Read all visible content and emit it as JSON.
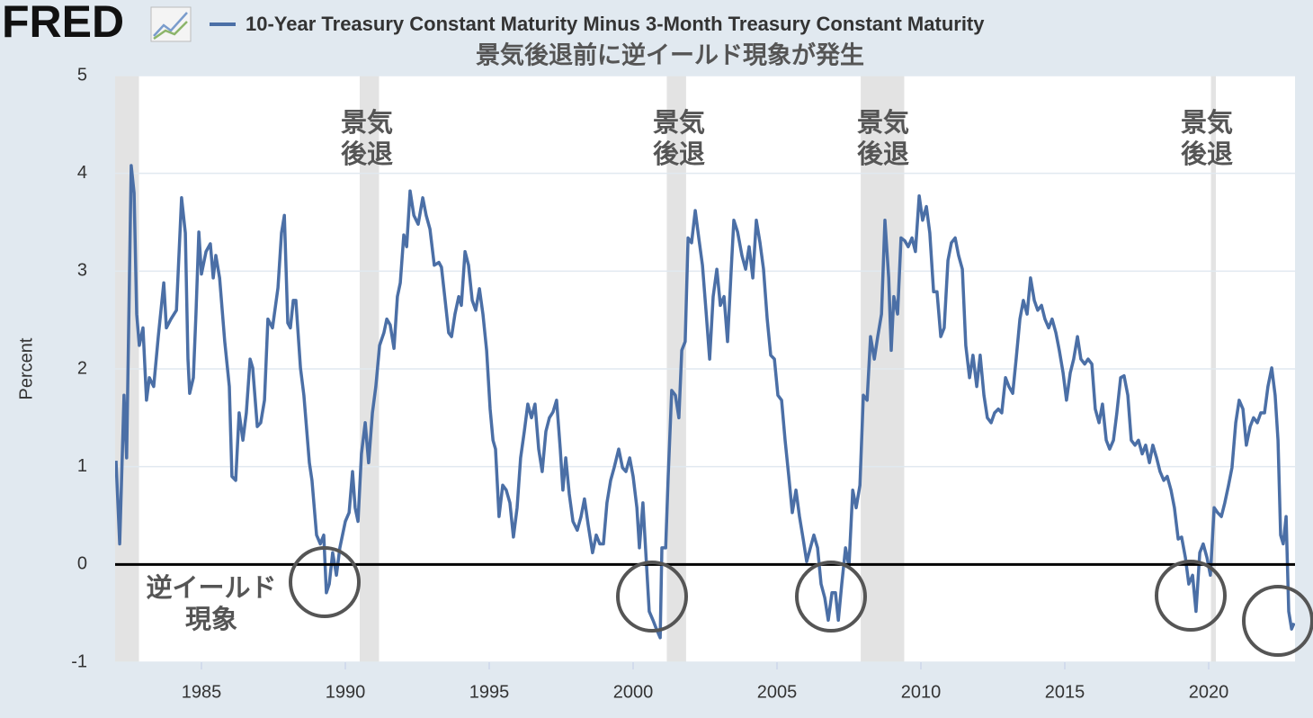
{
  "logo": "FRED",
  "chart_data": {
    "type": "line",
    "subtitle": "景気後退前に逆イールド現象が発生",
    "ylabel": "Percent",
    "recession_label": [
      "景気",
      "後退"
    ],
    "inversion_label": [
      "逆イールド",
      "現象"
    ],
    "xlim": [
      1982,
      2023
    ],
    "xticks": [
      1985,
      1990,
      1995,
      2000,
      2005,
      2010,
      2015,
      2020
    ],
    "ylim": [
      -1,
      5
    ],
    "yticks": [
      -1,
      0,
      1,
      2,
      3,
      4,
      5
    ],
    "grid": true,
    "reference_line": {
      "value": 0,
      "color": "#000000"
    },
    "recessions": [
      [
        1981.58,
        1982.83
      ],
      [
        1990.5,
        1991.17
      ],
      [
        2001.17,
        2001.84
      ],
      [
        2007.91,
        2009.42
      ],
      [
        2020.08,
        2020.25
      ]
    ],
    "recession_color": "#e3e3e3",
    "x": [
      1982.03,
      1982.16,
      1982.31,
      1982.4,
      1982.56,
      1982.66,
      1982.75,
      1982.84,
      1982.97,
      1983.09,
      1983.19,
      1983.34,
      1983.5,
      1983.69,
      1983.78,
      1983.94,
      1984.13,
      1984.31,
      1984.44,
      1984.53,
      1984.59,
      1984.72,
      1984.81,
      1984.91,
      1985.0,
      1985.16,
      1985.31,
      1985.41,
      1985.5,
      1985.63,
      1985.81,
      1985.97,
      1986.06,
      1986.19,
      1986.31,
      1986.44,
      1986.56,
      1986.69,
      1986.78,
      1986.94,
      1987.06,
      1987.19,
      1987.31,
      1987.47,
      1987.66,
      1987.78,
      1987.88,
      1988.0,
      1988.09,
      1988.19,
      1988.28,
      1988.44,
      1988.56,
      1988.75,
      1988.84,
      1989.0,
      1989.13,
      1989.25,
      1989.34,
      1989.44,
      1989.56,
      1989.69,
      1989.81,
      1990.0,
      1990.13,
      1990.25,
      1990.34,
      1990.44,
      1990.56,
      1990.69,
      1990.81,
      1990.94,
      1991.06,
      1991.19,
      1991.34,
      1991.44,
      1991.56,
      1991.69,
      1991.81,
      1991.91,
      1992.03,
      1992.13,
      1992.25,
      1992.38,
      1992.53,
      1992.69,
      1992.81,
      1992.94,
      1993.09,
      1993.25,
      1993.34,
      1993.47,
      1993.59,
      1993.69,
      1993.81,
      1993.94,
      1994.03,
      1994.16,
      1994.28,
      1994.41,
      1994.53,
      1994.66,
      1994.78,
      1994.91,
      1995.03,
      1995.13,
      1995.22,
      1995.34,
      1995.47,
      1995.59,
      1995.72,
      1995.84,
      1995.97,
      1996.09,
      1996.22,
      1996.34,
      1996.47,
      1996.59,
      1996.72,
      1996.84,
      1996.97,
      1997.09,
      1997.22,
      1997.34,
      1997.47,
      1997.56,
      1997.66,
      1997.78,
      1997.91,
      1998.06,
      1998.19,
      1998.31,
      1998.44,
      1998.59,
      1998.72,
      1998.84,
      1998.97,
      1999.09,
      1999.22,
      1999.34,
      1999.5,
      1999.63,
      1999.75,
      1999.88,
      2000.0,
      2000.13,
      2000.22,
      2000.34,
      2000.47,
      2000.56,
      2000.69,
      2000.81,
      2000.94,
      2001.0,
      2001.13,
      2001.22,
      2001.34,
      2001.47,
      2001.59,
      2001.69,
      2001.81,
      2001.91,
      2002.03,
      2002.16,
      2002.28,
      2002.41,
      2002.53,
      2002.66,
      2002.78,
      2002.91,
      2003.03,
      2003.16,
      2003.28,
      2003.41,
      2003.5,
      2003.63,
      2003.78,
      2003.91,
      2004.03,
      2004.16,
      2004.28,
      2004.41,
      2004.53,
      2004.66,
      2004.78,
      2004.91,
      2005.03,
      2005.16,
      2005.28,
      2005.41,
      2005.53,
      2005.66,
      2005.78,
      2005.91,
      2006.03,
      2006.16,
      2006.28,
      2006.41,
      2006.53,
      2006.66,
      2006.78,
      2006.91,
      2007.03,
      2007.13,
      2007.25,
      2007.38,
      2007.5,
      2007.63,
      2007.75,
      2007.88,
      2008.0,
      2008.13,
      2008.25,
      2008.38,
      2008.5,
      2008.63,
      2008.75,
      2008.88,
      2008.97,
      2009.06,
      2009.19,
      2009.31,
      2009.44,
      2009.56,
      2009.69,
      2009.81,
      2009.94,
      2010.06,
      2010.19,
      2010.31,
      2010.44,
      2010.56,
      2010.69,
      2010.81,
      2010.94,
      2011.06,
      2011.19,
      2011.31,
      2011.44,
      2011.56,
      2011.69,
      2011.81,
      2011.94,
      2012.06,
      2012.19,
      2012.31,
      2012.44,
      2012.56,
      2012.69,
      2012.81,
      2012.94,
      2013.06,
      2013.19,
      2013.31,
      2013.44,
      2013.56,
      2013.69,
      2013.81,
      2013.94,
      2014.06,
      2014.19,
      2014.31,
      2014.44,
      2014.56,
      2014.69,
      2014.81,
      2014.94,
      2015.06,
      2015.19,
      2015.31,
      2015.44,
      2015.56,
      2015.69,
      2015.81,
      2015.94,
      2016.06,
      2016.19,
      2016.31,
      2016.44,
      2016.56,
      2016.69,
      2016.81,
      2016.94,
      2017.06,
      2017.19,
      2017.31,
      2017.44,
      2017.56,
      2017.69,
      2017.81,
      2017.94,
      2018.06,
      2018.19,
      2018.31,
      2018.44,
      2018.56,
      2018.69,
      2018.81,
      2018.94,
      2019.06,
      2019.19,
      2019.31,
      2019.44,
      2019.56,
      2019.69,
      2019.81,
      2019.94,
      2020.06,
      2020.19,
      2020.31,
      2020.44,
      2020.56,
      2020.69,
      2020.81,
      2020.94,
      2021.06,
      2021.19,
      2021.31,
      2021.44,
      2021.56,
      2021.69,
      2021.81,
      2021.94,
      2022.06,
      2022.19,
      2022.31,
      2022.41,
      2022.5,
      2022.59,
      2022.69,
      2022.78,
      2022.88,
      2022.97
    ],
    "series": [
      {
        "name": "10-Year Treasury Constant Maturity Minus 3-Month Treasury Constant Maturity",
        "color": "#4b6fa6",
        "values": [
          1.06,
          0.21,
          1.73,
          1.09,
          4.08,
          3.8,
          2.56,
          2.24,
          2.42,
          1.68,
          1.91,
          1.82,
          2.33,
          2.88,
          2.42,
          2.51,
          2.6,
          3.75,
          3.39,
          2.1,
          1.75,
          1.91,
          2.56,
          3.4,
          2.97,
          3.2,
          3.28,
          2.93,
          3.16,
          2.93,
          2.28,
          1.82,
          0.9,
          0.86,
          1.55,
          1.27,
          1.55,
          2.1,
          2.01,
          1.41,
          1.45,
          1.68,
          2.51,
          2.42,
          2.83,
          3.39,
          3.57,
          2.47,
          2.42,
          2.7,
          2.7,
          2.01,
          1.73,
          1.04,
          0.86,
          0.3,
          0.21,
          0.3,
          -0.29,
          -0.2,
          0.12,
          -0.11,
          0.17,
          0.44,
          0.53,
          0.95,
          0.58,
          0.44,
          1.13,
          1.45,
          1.04,
          1.55,
          1.82,
          2.24,
          2.37,
          2.51,
          2.45,
          2.21,
          2.74,
          2.88,
          3.37,
          3.25,
          3.82,
          3.57,
          3.48,
          3.75,
          3.57,
          3.43,
          3.06,
          3.09,
          3.04,
          2.7,
          2.37,
          2.33,
          2.56,
          2.74,
          2.65,
          3.2,
          3.06,
          2.7,
          2.6,
          2.82,
          2.56,
          2.19,
          1.59,
          1.27,
          1.18,
          0.49,
          0.81,
          0.76,
          0.63,
          0.28,
          0.58,
          1.09,
          1.36,
          1.64,
          1.5,
          1.64,
          1.18,
          0.95,
          1.36,
          1.5,
          1.56,
          1.68,
          1.18,
          0.76,
          1.09,
          0.72,
          0.44,
          0.35,
          0.49,
          0.67,
          0.4,
          0.12,
          0.3,
          0.21,
          0.21,
          0.63,
          0.86,
          0.99,
          1.18,
          0.99,
          0.95,
          1.09,
          0.9,
          0.58,
          0.17,
          0.63,
          -0.02,
          -0.48,
          -0.57,
          -0.66,
          -0.75,
          0.17,
          0.17,
          0.9,
          1.78,
          1.73,
          1.5,
          2.19,
          2.28,
          3.34,
          3.29,
          3.62,
          3.34,
          3.06,
          2.6,
          2.1,
          2.74,
          3.02,
          2.65,
          2.74,
          2.28,
          3.02,
          3.52,
          3.4,
          3.16,
          3.02,
          3.25,
          2.93,
          3.52,
          3.29,
          3.02,
          2.51,
          2.14,
          2.1,
          1.73,
          1.68,
          1.27,
          0.9,
          0.53,
          0.76,
          0.49,
          0.26,
          0.03,
          0.17,
          0.3,
          0.17,
          -0.2,
          -0.34,
          -0.57,
          -0.29,
          -0.29,
          -0.57,
          -0.2,
          0.17,
          -0.02,
          0.76,
          0.58,
          0.81,
          1.73,
          1.68,
          2.33,
          2.1,
          2.33,
          2.56,
          3.52,
          2.93,
          2.19,
          2.74,
          2.56,
          3.34,
          3.31,
          3.25,
          3.34,
          3.2,
          3.77,
          3.52,
          3.66,
          3.39,
          2.79,
          2.79,
          2.33,
          2.42,
          3.11,
          3.29,
          3.34,
          3.16,
          3.02,
          2.24,
          1.91,
          2.14,
          1.82,
          2.14,
          1.73,
          1.5,
          1.45,
          1.55,
          1.59,
          1.55,
          1.91,
          1.82,
          1.75,
          2.1,
          2.51,
          2.7,
          2.56,
          2.93,
          2.7,
          2.6,
          2.65,
          2.51,
          2.42,
          2.51,
          2.37,
          2.19,
          1.96,
          1.68,
          1.96,
          2.1,
          2.33,
          2.1,
          2.05,
          2.1,
          2.05,
          1.59,
          1.45,
          1.64,
          1.27,
          1.18,
          1.27,
          1.55,
          1.91,
          1.93,
          1.73,
          1.27,
          1.22,
          1.27,
          1.13,
          1.22,
          1.04,
          1.22,
          1.09,
          0.95,
          0.86,
          0.9,
          0.76,
          0.58,
          0.26,
          0.28,
          0.07,
          -0.2,
          -0.11,
          -0.48,
          0.12,
          0.21,
          0.07,
          -0.11,
          0.58,
          0.53,
          0.49,
          0.63,
          0.81,
          0.99,
          1.45,
          1.68,
          1.59,
          1.22,
          1.41,
          1.5,
          1.45,
          1.55,
          1.55,
          1.82,
          2.01,
          1.73,
          1.27,
          0.3,
          0.21,
          0.49,
          -0.48,
          -0.66,
          -0.6
        ]
      }
    ]
  }
}
